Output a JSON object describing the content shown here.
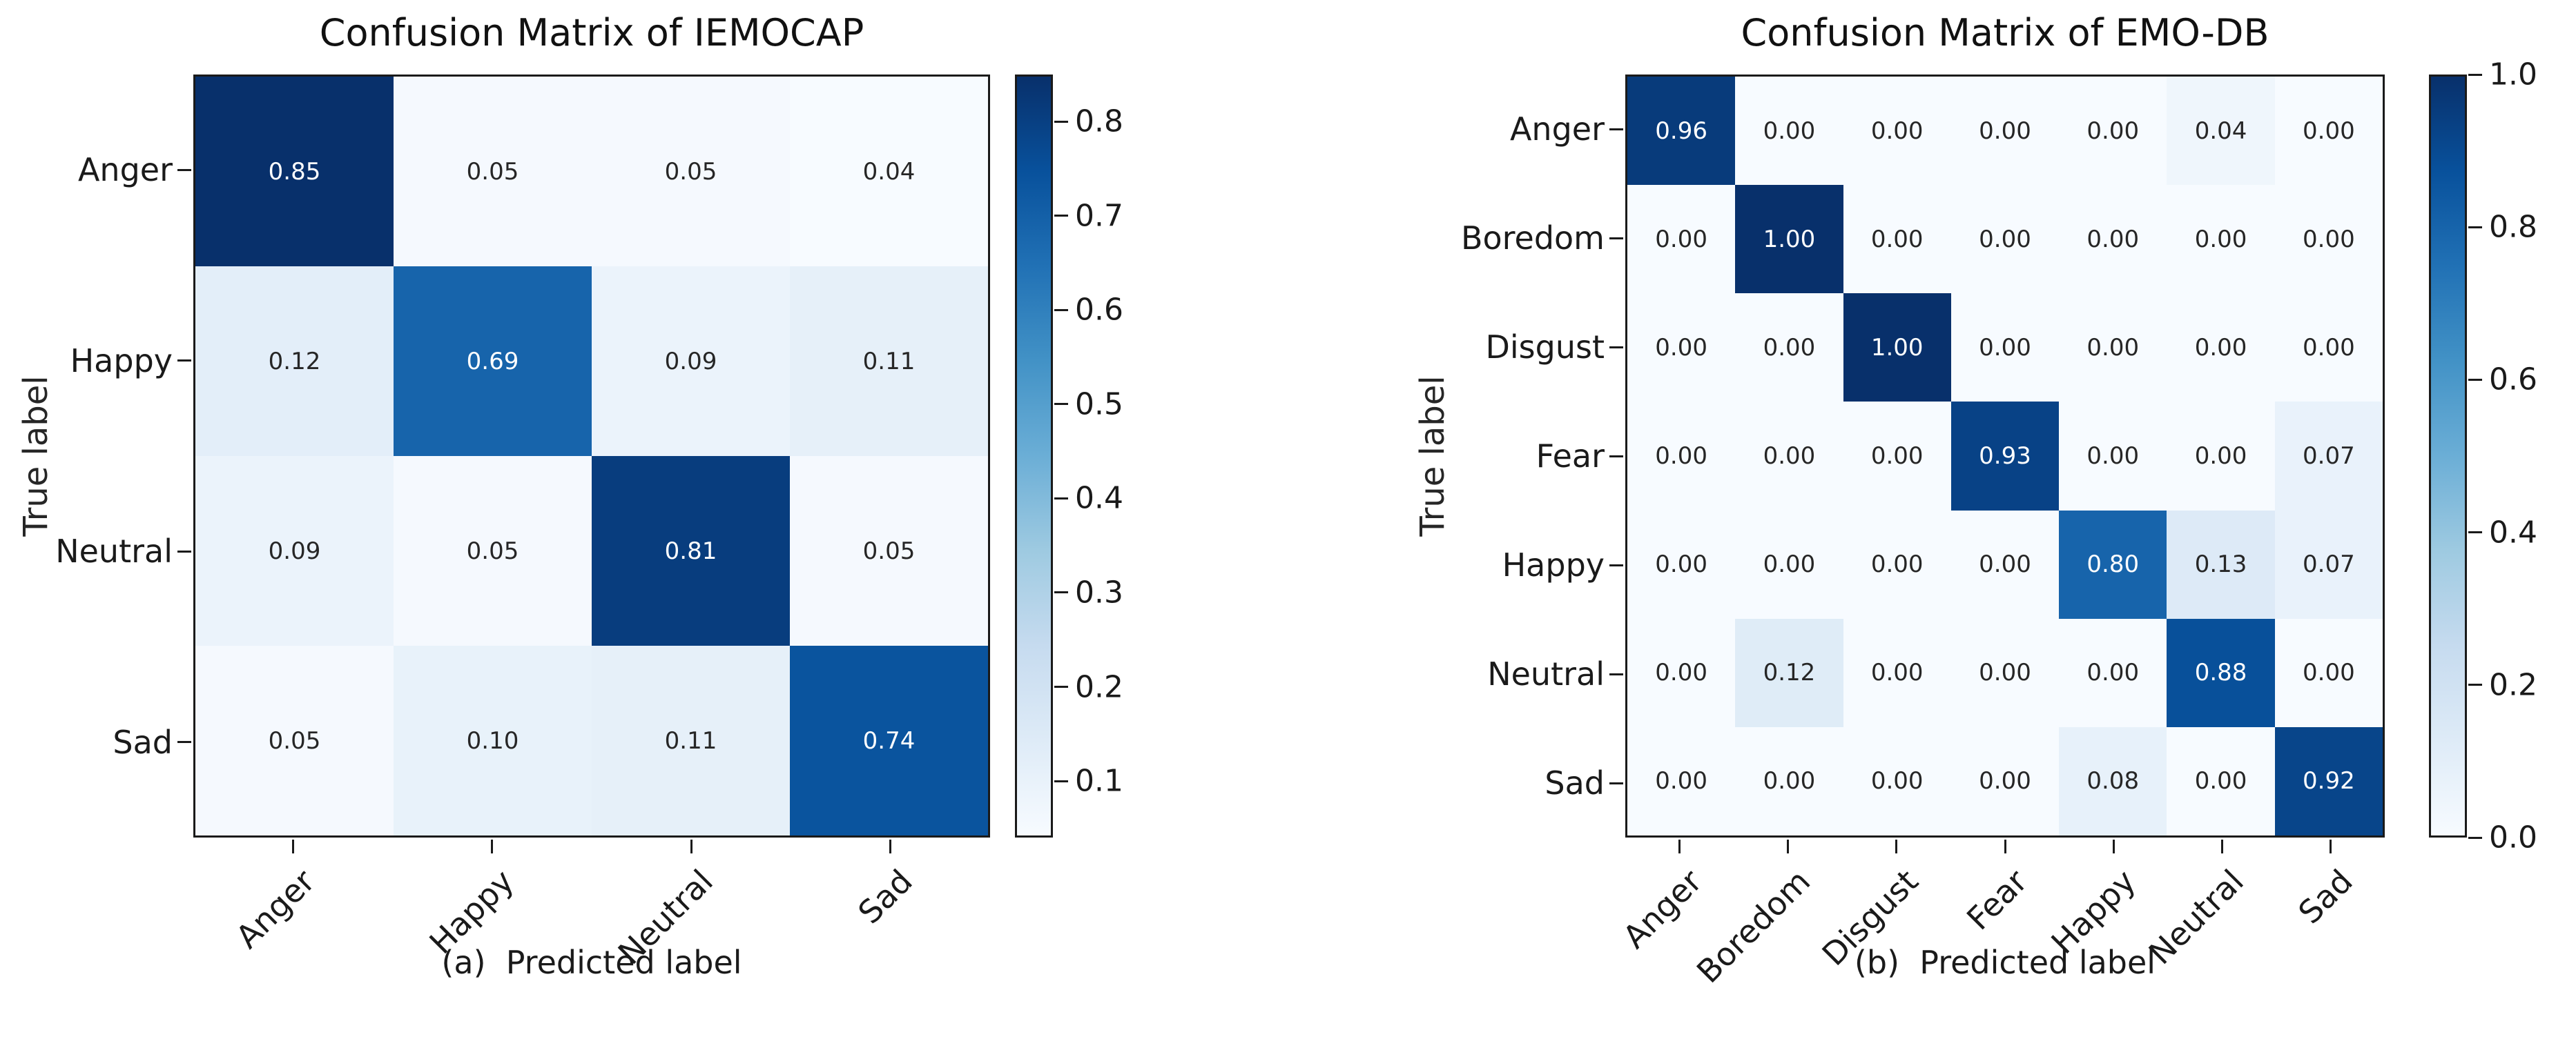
{
  "page": {
    "background": "#ffffff"
  },
  "palette": {
    "colormap_name": "Blues",
    "colormap_stops": [
      "#f7fbff",
      "#deebf7",
      "#c6dbef",
      "#9ecae1",
      "#6baed6",
      "#4292c6",
      "#2171b5",
      "#08519c",
      "#08306b"
    ],
    "cell_text_dark": "#262626",
    "cell_text_light": "#ffffff",
    "axis_color": "#1a1a1a"
  },
  "chart_data": [
    {
      "type": "heatmap",
      "title": "Confusion Matrix of IEMOCAP",
      "xlabel": "(a)  Predicted label",
      "ylabel": "True label",
      "x_categories": [
        "Anger",
        "Happy",
        "Neutral",
        "Sad"
      ],
      "y_categories": [
        "Anger",
        "Happy",
        "Neutral",
        "Sad"
      ],
      "rows": [
        [
          0.85,
          0.05,
          0.05,
          0.04
        ],
        [
          0.12,
          0.69,
          0.09,
          0.11
        ],
        [
          0.09,
          0.05,
          0.81,
          0.05
        ],
        [
          0.05,
          0.1,
          0.11,
          0.74
        ]
      ],
      "vmin": 0.04,
      "vmax": 0.85,
      "colorbar_ticks": [
        0.8,
        0.7,
        0.6,
        0.5,
        0.4,
        0.3,
        0.2,
        0.1
      ],
      "grid": false,
      "legend_position": "right-colorbar"
    },
    {
      "type": "heatmap",
      "title": "Confusion Matrix of EMO-DB",
      "xlabel": "(b)  Predicted label",
      "ylabel": "True label",
      "x_categories": [
        "Anger",
        "Boredom",
        "Disgust",
        "Fear",
        "Happy",
        "Neutral",
        "Sad"
      ],
      "y_categories": [
        "Anger",
        "Boredom",
        "Disgust",
        "Fear",
        "Happy",
        "Neutral",
        "Sad"
      ],
      "rows": [
        [
          0.96,
          0.0,
          0.0,
          0.0,
          0.0,
          0.04,
          0.0
        ],
        [
          0.0,
          1.0,
          0.0,
          0.0,
          0.0,
          0.0,
          0.0
        ],
        [
          0.0,
          0.0,
          1.0,
          0.0,
          0.0,
          0.0,
          0.0
        ],
        [
          0.0,
          0.0,
          0.0,
          0.93,
          0.0,
          0.0,
          0.07
        ],
        [
          0.0,
          0.0,
          0.0,
          0.0,
          0.8,
          0.13,
          0.07
        ],
        [
          0.0,
          0.12,
          0.0,
          0.0,
          0.0,
          0.88,
          0.0
        ],
        [
          0.0,
          0.0,
          0.0,
          0.0,
          0.08,
          0.0,
          0.92
        ]
      ],
      "vmin": 0.0,
      "vmax": 1.0,
      "colorbar_ticks": [
        1.0,
        0.8,
        0.6,
        0.4,
        0.2,
        0.0
      ],
      "grid": false,
      "legend_position": "right-colorbar"
    }
  ]
}
